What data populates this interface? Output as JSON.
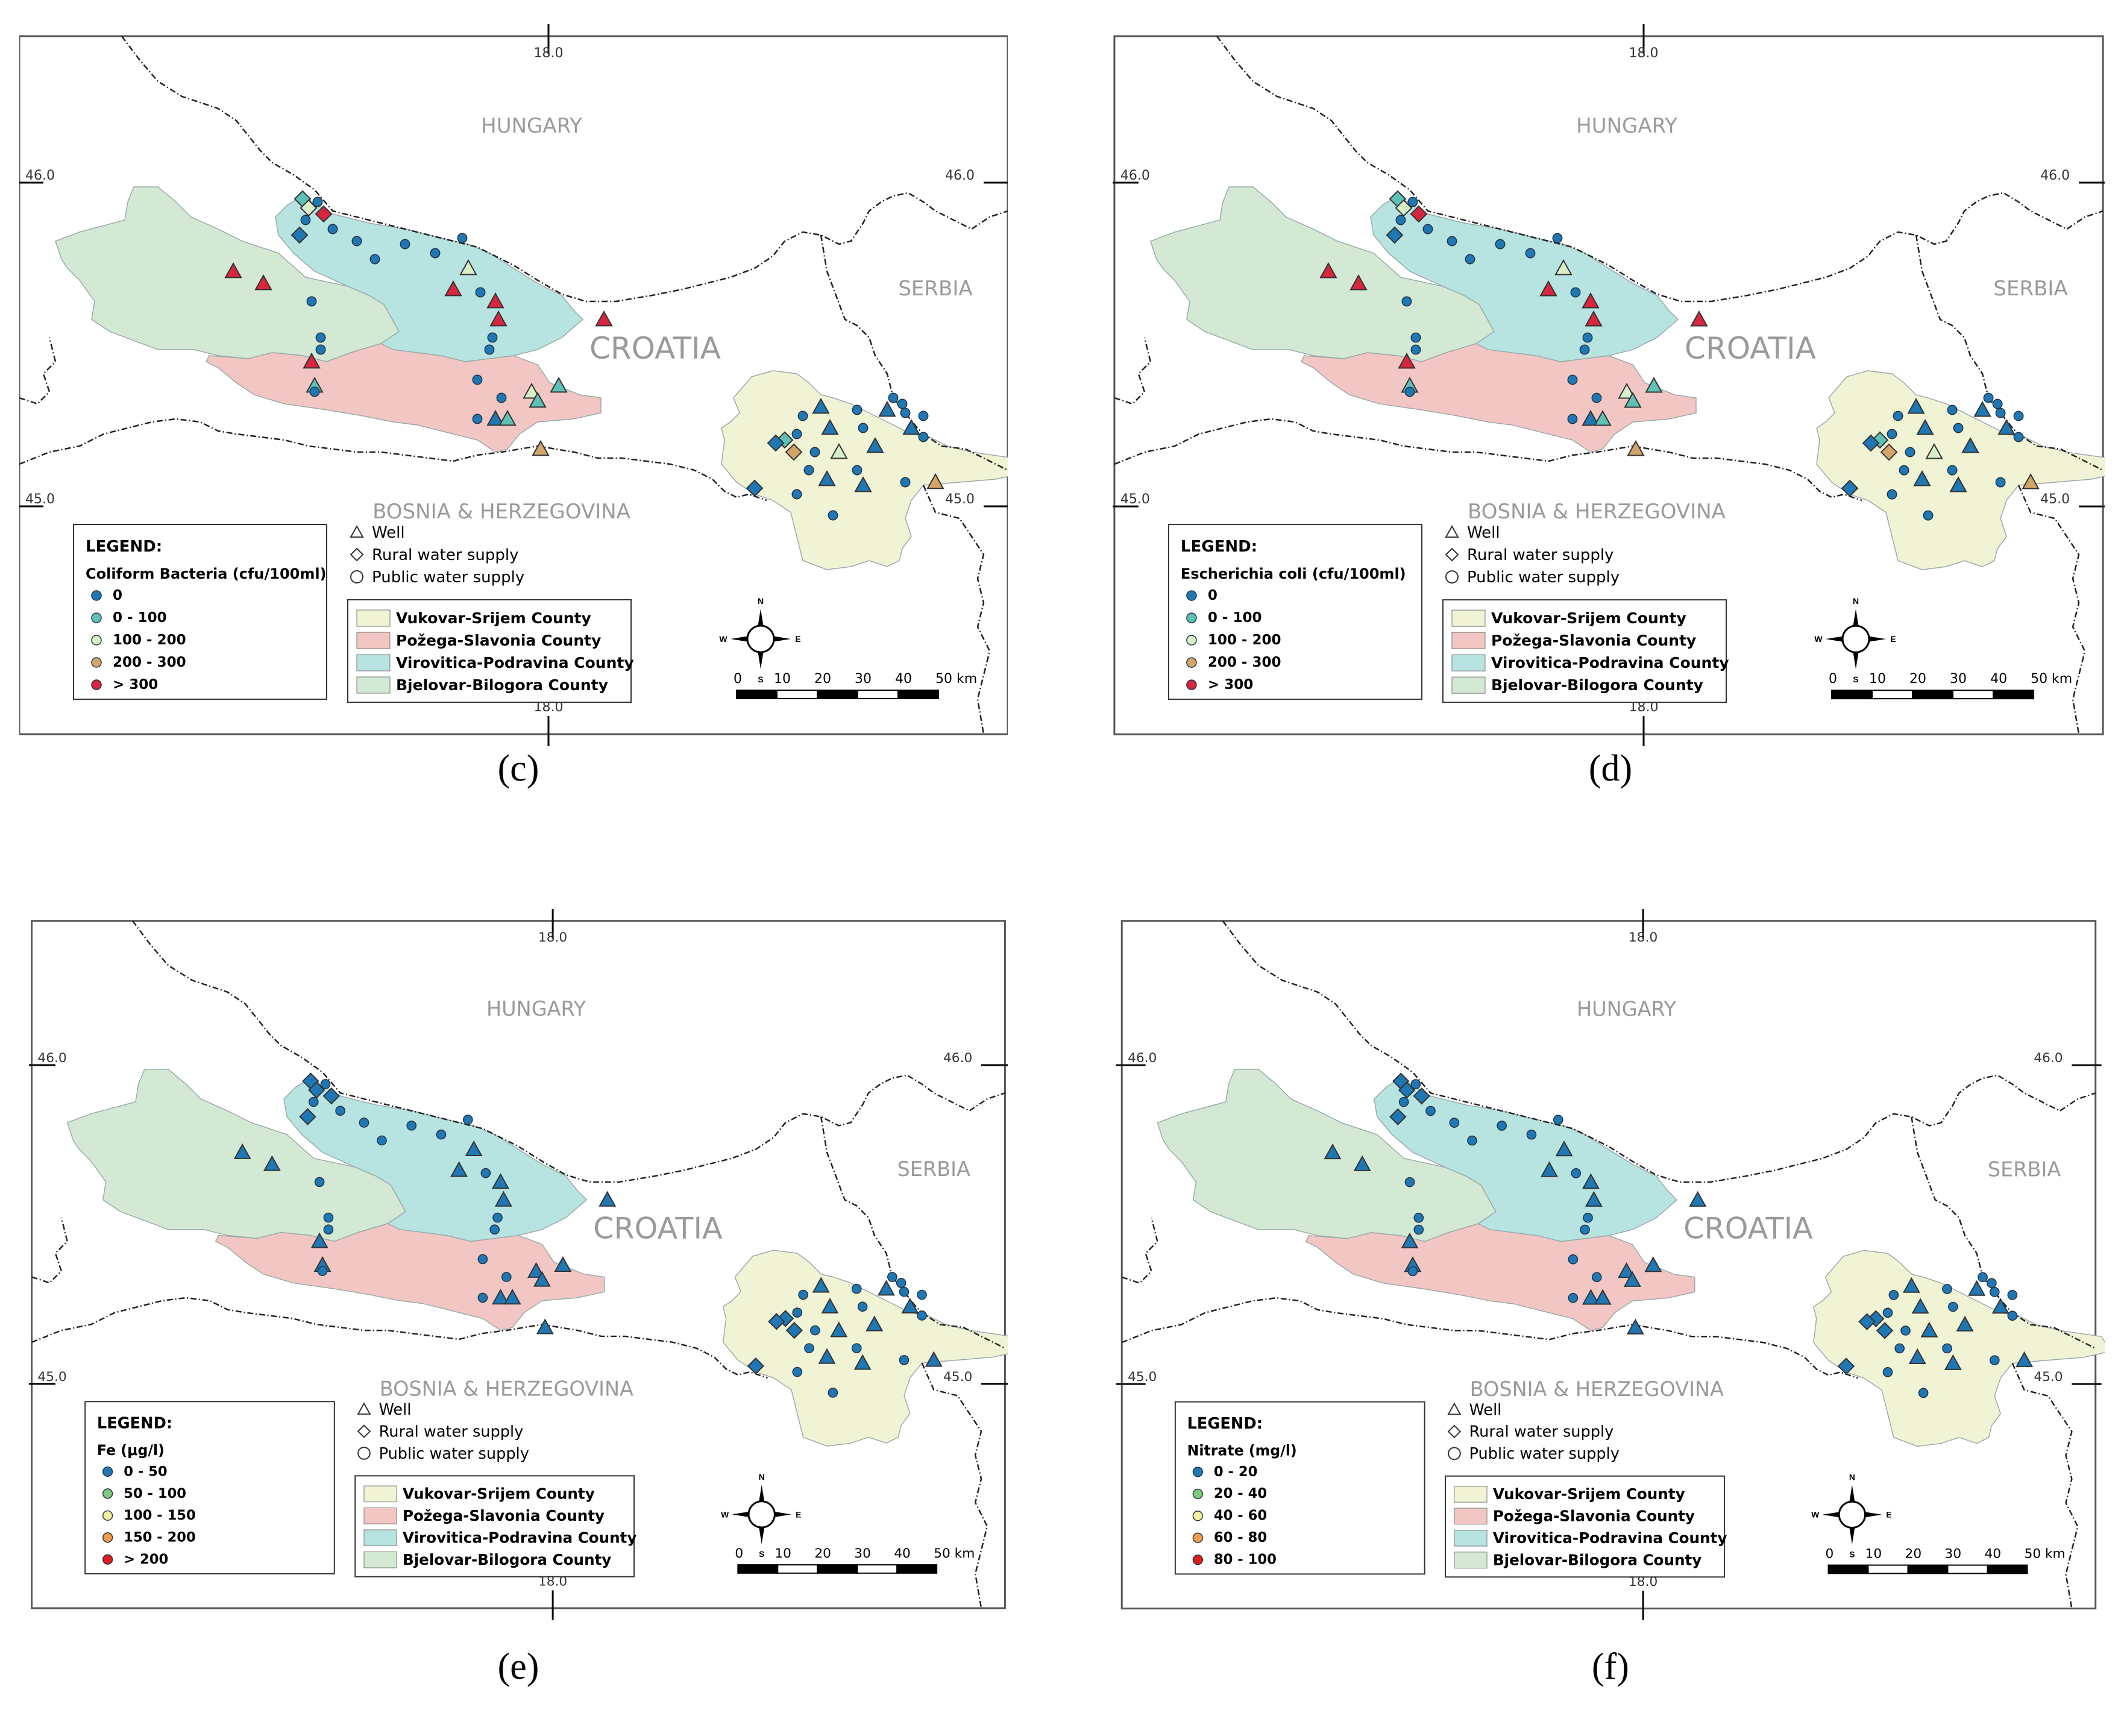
{
  "labels": {
    "hungary": "HUNGARY",
    "serbia": "SERBIA",
    "croatia": "CROATIA",
    "bosnia": "BOSNIA & HERZEGOVINA",
    "lon18": "18.0",
    "lat46": "46.0",
    "lat45": "45.0",
    "legend_title": "LEGEND:",
    "well": "Well",
    "rural": "Rural water supply",
    "public": "Public water supply",
    "compass_n": "N",
    "compass_s": "S",
    "compass_e": "E",
    "compass_w": "W",
    "scale_ticks": [
      "0",
      "10",
      "20",
      "30",
      "40",
      "50 km"
    ]
  },
  "counties": [
    {
      "name": "Vukovar-Srijem County",
      "color": "#f1f3d5"
    },
    {
      "name": "Požega-Slavonia County",
      "color": "#f2c6c2"
    },
    {
      "name": "Virovitica-Podravina County",
      "color": "#b7e3e1"
    },
    {
      "name": "Bjelovar-Bilogora County",
      "color": "#d3e9d4"
    }
  ],
  "panels": [
    {
      "caption": "(c)",
      "parameter": "Coliform Bacteria (cfu/100ml)",
      "classes": [
        {
          "label": "0",
          "color": "#1f77b4"
        },
        {
          "label": "0 - 100",
          "color": "#5ec1b8"
        },
        {
          "label": "100 - 200",
          "color": "#d8f0c8"
        },
        {
          "label": "200 - 300",
          "color": "#d4a56a"
        },
        {
          "label": "> 300",
          "color": "#d7263d"
        }
      ]
    },
    {
      "caption": "(d)",
      "parameter": "Escherichia coli (cfu/100ml)",
      "classes": [
        {
          "label": "0",
          "color": "#1f77b4"
        },
        {
          "label": "0 - 100",
          "color": "#5ec1b8"
        },
        {
          "label": "100 - 200",
          "color": "#d8f0c8"
        },
        {
          "label": "200 - 300",
          "color": "#d4a56a"
        },
        {
          "label": "> 300",
          "color": "#d7263d"
        }
      ]
    },
    {
      "caption": "(e)",
      "parameter": "Fe (μg/l)",
      "classes": [
        {
          "label": "0 - 50",
          "color": "#1f77b4"
        },
        {
          "label": "50 - 100",
          "color": "#7fc97f"
        },
        {
          "label": "100 - 150",
          "color": "#f4f1a1"
        },
        {
          "label": "150 - 200",
          "color": "#f39c4a"
        },
        {
          "label": "> 200",
          "color": "#e31a1c"
        }
      ]
    },
    {
      "caption": "(f)",
      "parameter": "Nitrate (mg/l)",
      "classes": [
        {
          "label": "0 - 20",
          "color": "#1f77b4"
        },
        {
          "label": "20 - 40",
          "color": "#7fc97f"
        },
        {
          "label": "40 - 60",
          "color": "#f4f1a1"
        },
        {
          "label": "60 - 80",
          "color": "#f39c4a"
        },
        {
          "label": "80 - 100",
          "color": "#e31a1c"
        }
      ]
    }
  ]
}
